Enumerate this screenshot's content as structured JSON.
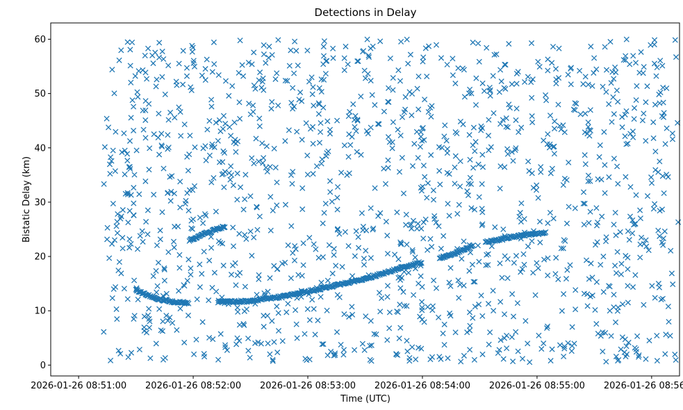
{
  "chart_data": {
    "type": "scatter",
    "title": "Detections in Delay",
    "xlabel": "Time (UTC)",
    "ylabel": "Bistatic Delay (km)",
    "x_ticks": [
      "2026-01-26 08:51:00",
      "2026-01-26 08:52:00",
      "2026-01-26 08:53:00",
      "2026-01-26 08:54:00",
      "2026-01-26 08:55:00",
      "2026-01-26 08:56:00"
    ],
    "y_ticks": [
      0,
      10,
      20,
      30,
      40,
      50,
      60
    ],
    "xlim_seconds_after_0851": [
      -14.6,
      314.6
    ],
    "ylim": [
      -2.0,
      63.0
    ],
    "grid": false,
    "marker": "x",
    "color": "#1f77b4",
    "tracks": [
      {
        "points": [
          [
            "08:51:30",
            13.8
          ],
          [
            "08:51:40",
            12.3
          ],
          [
            "08:51:50",
            11.6
          ],
          [
            "08:51:58",
            11.5
          ]
        ]
      },
      {
        "points": [
          [
            "08:51:58",
            23.0
          ],
          [
            "08:52:06",
            24.2
          ],
          [
            "08:52:14",
            25.2
          ],
          [
            "08:52:17",
            25.6
          ]
        ]
      },
      {
        "points": [
          [
            "08:52:13",
            11.6
          ],
          [
            "08:52:30",
            11.8
          ],
          [
            "08:52:50",
            12.8
          ],
          [
            "08:53:10",
            14.3
          ],
          [
            "08:53:30",
            15.9
          ],
          [
            "08:53:50",
            18.0
          ],
          [
            "08:54:00",
            19.0
          ]
        ]
      },
      {
        "points": [
          [
            "08:54:09",
            19.6
          ],
          [
            "08:54:20",
            21.0
          ],
          [
            "08:54:27",
            22.0
          ]
        ]
      },
      {
        "points": [
          [
            "08:54:33",
            22.6
          ],
          [
            "08:54:45",
            23.5
          ],
          [
            "08:54:55",
            24.0
          ],
          [
            "08:55:05",
            24.4
          ]
        ]
      }
    ],
    "noise": {
      "count": 1400,
      "x_range": [
        "08:51:13",
        "08:56:14"
      ],
      "y_range": [
        0.5,
        60.0
      ]
    }
  }
}
